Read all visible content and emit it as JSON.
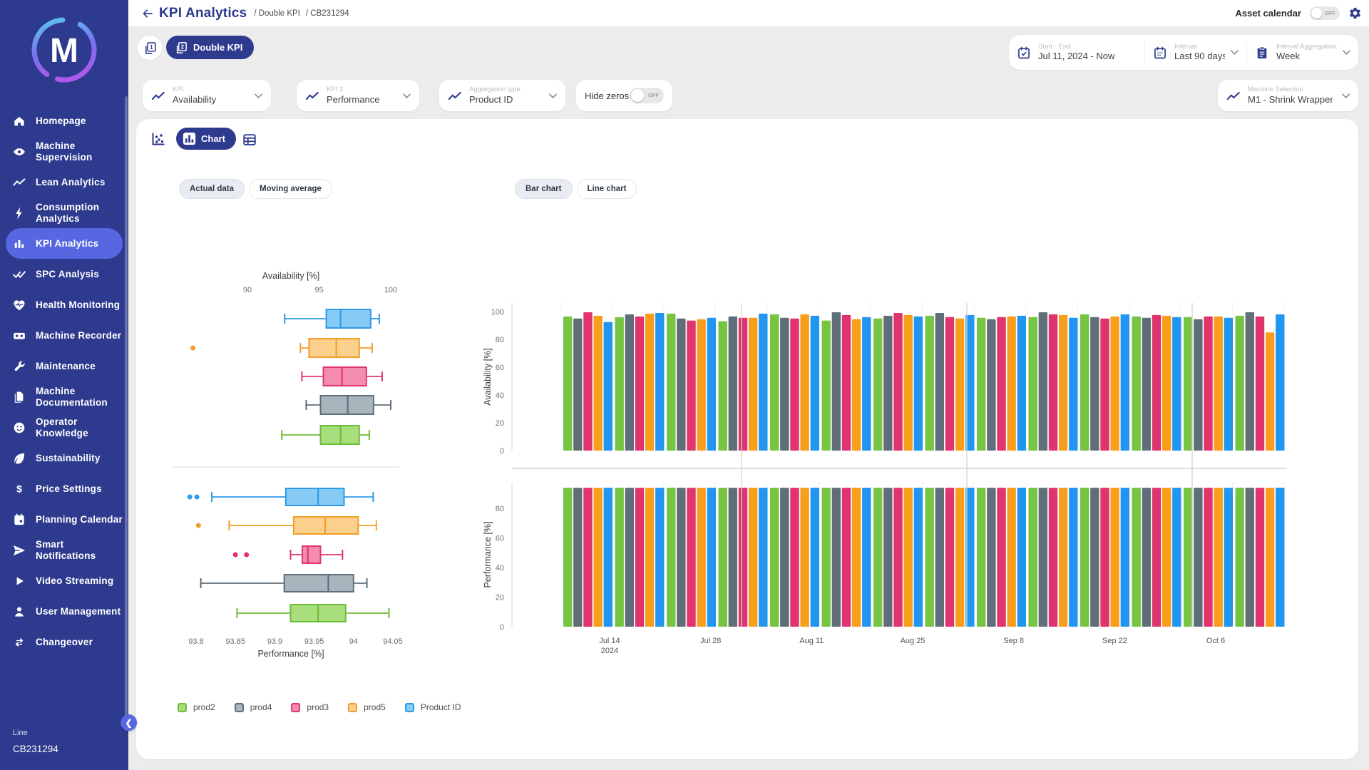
{
  "app": {
    "logo_letter": "M"
  },
  "sidebar": {
    "items": [
      {
        "label": "Homepage",
        "icon": "home",
        "active": false
      },
      {
        "label": "Machine Supervision",
        "icon": "eye",
        "active": false
      },
      {
        "label": "Lean Analytics",
        "icon": "trend",
        "active": false
      },
      {
        "label": "Consumption Analytics",
        "icon": "bolt",
        "active": false
      },
      {
        "label": "KPI Analytics",
        "icon": "bars",
        "active": true
      },
      {
        "label": "SPC Analysis",
        "icon": "checks",
        "active": false
      },
      {
        "label": "Health Monitoring",
        "icon": "heart",
        "active": false
      },
      {
        "label": "Machine Recorder",
        "icon": "recorder",
        "active": false
      },
      {
        "label": "Maintenance",
        "icon": "wrench",
        "active": false
      },
      {
        "label": "Machine Documentation",
        "icon": "doc",
        "active": false
      },
      {
        "label": "Operator Knowledge",
        "icon": "face",
        "active": false
      },
      {
        "label": "Sustainability",
        "icon": "leaf",
        "active": false
      },
      {
        "label": "Price Settings",
        "icon": "dollar",
        "active": false
      },
      {
        "label": "Planning Calendar",
        "icon": "calendar",
        "active": false
      },
      {
        "label": "Smart Notifications",
        "icon": "send",
        "active": false
      },
      {
        "label": "Video Streaming",
        "icon": "play",
        "active": false
      },
      {
        "label": "User Management",
        "icon": "user",
        "active": false
      },
      {
        "label": "Changeover",
        "icon": "cycle",
        "active": false
      }
    ],
    "footer": {
      "line_label": "Line",
      "line_value": "CB231294"
    }
  },
  "header": {
    "title": "KPI Analytics",
    "breadcrumbs": [
      "Double KPI",
      "CB231294"
    ],
    "asset_calendar_label": "Asset calendar",
    "asset_calendar_state": "OFF"
  },
  "kpi_mode": {
    "double_label": "Double KPI"
  },
  "filters": {
    "kpi": {
      "label": "KPI",
      "value": "Availability"
    },
    "kpi2": {
      "label": "KPI 2",
      "value": "Performance"
    },
    "aggregation": {
      "label": "Aggregation type",
      "value": "Product ID"
    },
    "hide_zeros": {
      "label": "Hide zeros",
      "state": "OFF"
    },
    "start_end": {
      "label": "Start - End",
      "value": "Jul 11, 2024 - Now"
    },
    "interval": {
      "label": "Interval",
      "value": "Last 90 days"
    },
    "interval_aggregation": {
      "label": "Interval Aggregation",
      "value": "Week"
    },
    "machine_selection": {
      "label": "Machine Selection",
      "value": "M1 - Shrink Wrapper"
    }
  },
  "toolbar": {
    "chart_label": "Chart"
  },
  "chart_controls": {
    "data_buttons": [
      {
        "label": "Actual data",
        "active": true
      },
      {
        "label": "Moving average",
        "active": false
      }
    ],
    "type_buttons": [
      {
        "label": "Bar chart",
        "active": true
      },
      {
        "label": "Line chart",
        "active": false
      }
    ]
  },
  "legend": [
    {
      "label": "prod2",
      "fill": "#a9de7c",
      "border": "#6dbd39"
    },
    {
      "label": "prod4",
      "fill": "#a9b5bd",
      "border": "#5f6e78"
    },
    {
      "label": "prod3",
      "fill": "#f48cb1",
      "border": "#e0346e"
    },
    {
      "label": "prod5",
      "fill": "#fbd08d",
      "border": "#f29d28"
    },
    {
      "label": "Product ID",
      "fill": "#85cbf5",
      "border": "#2e9be6"
    }
  ],
  "colors": {
    "sidebar_bg": "#2d3a8e",
    "active_item": "#5767e2",
    "accent_navy": "#2d3a8e",
    "content_bg": "#ececec"
  },
  "chart_data": [
    {
      "type": "boxplot",
      "title": "Availability [%]",
      "orientation": "horizontal",
      "xticks": [
        {
          "v": 90,
          "label": "90"
        },
        {
          "v": 95,
          "label": "95"
        },
        {
          "v": 100,
          "label": "100"
        }
      ],
      "xlim": [
        88,
        101
      ],
      "series": [
        {
          "name": "Product ID",
          "fill": "#85cbf5",
          "border": "#2e9be6",
          "low": 92.6,
          "q1": 95.5,
          "median": 96.5,
          "q3": 98.6,
          "high": 99.2,
          "outliers": []
        },
        {
          "name": "prod5",
          "fill": "#fbd08d",
          "border": "#f29d28",
          "low": 93.7,
          "q1": 94.3,
          "median": 96.2,
          "q3": 97.8,
          "high": 98.7,
          "outliers": [
            86.2
          ]
        },
        {
          "name": "prod3",
          "fill": "#f48cb1",
          "border": "#e0346e",
          "low": 93.8,
          "q1": 95.3,
          "median": 96.6,
          "q3": 98.3,
          "high": 99.4,
          "outliers": []
        },
        {
          "name": "prod4",
          "fill": "#a9b5bd",
          "border": "#5f6e78",
          "low": 94.1,
          "q1": 95.1,
          "median": 97.0,
          "q3": 98.8,
          "high": 100.0,
          "outliers": []
        },
        {
          "name": "prod2",
          "fill": "#a9de7c",
          "border": "#6dbd39",
          "low": 92.4,
          "q1": 95.1,
          "median": 96.5,
          "q3": 97.8,
          "high": 98.5,
          "outliers": []
        }
      ]
    },
    {
      "type": "boxplot",
      "title": "Performance [%]",
      "orientation": "horizontal",
      "xticks": [
        {
          "v": 93.8,
          "label": "93.8"
        },
        {
          "v": 93.85,
          "label": "93.85"
        },
        {
          "v": 93.9,
          "label": "93.9"
        },
        {
          "v": 93.95,
          "label": "93.95"
        },
        {
          "v": 94,
          "label": "94"
        },
        {
          "v": 94.05,
          "label": "94.05"
        }
      ],
      "xlim": [
        93.78,
        94.06
      ],
      "series": [
        {
          "name": "Product ID",
          "fill": "#85cbf5",
          "border": "#2e9be6",
          "low": 93.82,
          "q1": 93.914,
          "median": 93.955,
          "q3": 93.988,
          "high": 94.025,
          "outliers": [
            93.792,
            93.801
          ]
        },
        {
          "name": "prod5",
          "fill": "#fbd08d",
          "border": "#f29d28",
          "low": 93.842,
          "q1": 93.924,
          "median": 93.964,
          "q3": 94.006,
          "high": 94.029,
          "outliers": [
            93.803
          ]
        },
        {
          "name": "prod3",
          "fill": "#f48cb1",
          "border": "#e0346e",
          "low": 93.92,
          "q1": 93.935,
          "median": 93.942,
          "q3": 93.958,
          "high": 93.986,
          "outliers": [
            93.85,
            93.864
          ]
        },
        {
          "name": "prod4",
          "fill": "#a9b5bd",
          "border": "#5f6e78",
          "low": 93.806,
          "q1": 93.912,
          "median": 93.968,
          "q3": 94.0,
          "high": 94.017,
          "outliers": []
        },
        {
          "name": "prod2",
          "fill": "#a9de7c",
          "border": "#6dbd39",
          "low": 93.852,
          "q1": 93.92,
          "median": 93.955,
          "q3": 93.99,
          "high": 94.045,
          "outliers": []
        }
      ]
    },
    {
      "type": "bar",
      "ylabel": "Availability [%]",
      "ylim": [
        0,
        105
      ],
      "yticks": [
        0,
        20,
        40,
        60,
        80,
        100
      ],
      "x_labels": [
        [
          "Jul 14",
          "2024"
        ],
        [
          "Jul 28"
        ],
        [
          "Aug 11"
        ],
        [
          "Aug 25"
        ],
        [
          "Sep 8"
        ],
        [
          "Sep 22"
        ],
        [
          "Oct 6"
        ]
      ],
      "groups": 14,
      "series": [
        {
          "name": "prod2",
          "color": "#76c442",
          "values": [
            96.5,
            96.0,
            98.5,
            93.0,
            98.0,
            93.5,
            95.0,
            97.0,
            95.5,
            96.0,
            98.0,
            96.5,
            96.0,
            97.0
          ]
        },
        {
          "name": "prod4",
          "color": "#5f6e78",
          "values": [
            95.0,
            98.0,
            95.0,
            96.5,
            95.5,
            99.5,
            97.0,
            99.0,
            94.5,
            99.5,
            96.0,
            95.5,
            94.5,
            99.5
          ]
        },
        {
          "name": "prod3",
          "color": "#e0346e",
          "values": [
            99.5,
            96.5,
            93.5,
            95.5,
            95.0,
            97.5,
            99.0,
            96.0,
            96.0,
            98.0,
            95.0,
            97.5,
            96.5,
            96.5
          ]
        },
        {
          "name": "prod5",
          "color": "#f99d1c",
          "values": [
            97.0,
            98.5,
            94.5,
            95.5,
            98.0,
            94.5,
            97.5,
            95.0,
            96.5,
            97.5,
            96.5,
            97.0,
            96.5,
            85.0
          ]
        },
        {
          "name": "Product ID",
          "color": "#2196f0",
          "values": [
            92.5,
            99.0,
            95.5,
            98.5,
            97.0,
            96.0,
            96.5,
            97.5,
            97.0,
            95.5,
            98.0,
            96.0,
            95.5,
            98.0
          ]
        }
      ]
    },
    {
      "type": "bar",
      "ylabel": "Performance [%]",
      "ylim": [
        0,
        95
      ],
      "yticks": [
        0,
        20,
        40,
        60,
        80
      ],
      "x_labels": [
        [
          "Jul 14",
          "2024"
        ],
        [
          "Jul 28"
        ],
        [
          "Aug 11"
        ],
        [
          "Aug 25"
        ],
        [
          "Sep 8"
        ],
        [
          "Sep 22"
        ],
        [
          "Oct 6"
        ]
      ],
      "groups": 14,
      "series": [
        {
          "name": "prod2",
          "color": "#76c442",
          "values": [
            93.9,
            93.9,
            93.9,
            93.9,
            93.9,
            93.9,
            93.9,
            93.9,
            93.9,
            93.9,
            93.9,
            93.9,
            93.9,
            93.9
          ]
        },
        {
          "name": "prod4",
          "color": "#5f6e78",
          "values": [
            93.9,
            93.9,
            93.9,
            93.9,
            93.9,
            93.9,
            93.9,
            93.9,
            93.9,
            93.9,
            93.9,
            93.9,
            93.9,
            93.9
          ]
        },
        {
          "name": "prod3",
          "color": "#e0346e",
          "values": [
            93.9,
            93.9,
            93.9,
            93.9,
            93.9,
            93.9,
            93.9,
            93.9,
            93.9,
            93.9,
            93.9,
            93.9,
            93.9,
            93.9
          ]
        },
        {
          "name": "prod5",
          "color": "#f99d1c",
          "values": [
            93.9,
            93.9,
            93.9,
            93.9,
            93.9,
            93.9,
            93.9,
            93.9,
            93.9,
            93.9,
            93.9,
            93.9,
            93.9,
            93.9
          ]
        },
        {
          "name": "Product ID",
          "color": "#2196f0",
          "values": [
            93.9,
            93.9,
            93.9,
            93.9,
            93.9,
            93.9,
            93.9,
            93.9,
            93.9,
            93.9,
            93.9,
            93.9,
            93.9,
            93.9
          ]
        }
      ]
    }
  ]
}
